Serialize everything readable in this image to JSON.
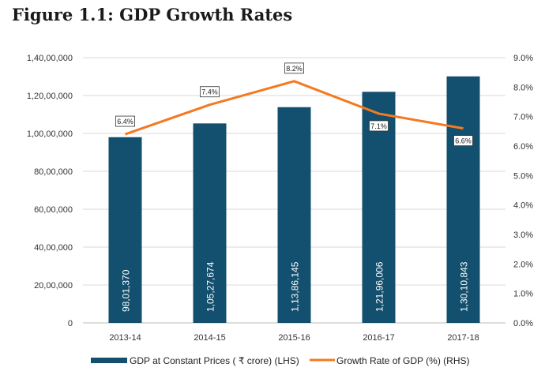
{
  "chart_data": {
    "type": "bar+line",
    "title": "Figure 1.1: GDP Growth Rates",
    "categories": [
      "2013-14",
      "2014-15",
      "2015-16",
      "2016-17",
      "2017-18"
    ],
    "series": [
      {
        "name": "GDP at Constant Prices ( ₹ crore) (LHS)",
        "type": "bar",
        "axis": "left",
        "values": [
          9801370,
          10527674,
          11386145,
          12196006,
          13010843
        ],
        "labels": [
          "98,01,370",
          "1,05,27,674",
          "1,13,86,145",
          "1,21,96,006",
          "1,30,10,843"
        ],
        "color": "#134f6e"
      },
      {
        "name": "Growth Rate of GDP (%) (RHS)",
        "type": "line",
        "axis": "right",
        "values": [
          6.4,
          7.4,
          8.2,
          7.1,
          6.6
        ],
        "labels": [
          "6.4%",
          "7.4%",
          "8.2%",
          "7.1%",
          "6.6%"
        ],
        "color": "#f47920"
      }
    ],
    "left_axis": {
      "ylim": [
        0,
        14000000
      ],
      "ticks": [
        "0",
        "20,00,000",
        "40,00,000",
        "60,00,000",
        "80,00,000",
        "1,00,00,000",
        "1,20,00,000",
        "1,40,00,000"
      ]
    },
    "right_axis": {
      "ylim": [
        0,
        9
      ],
      "ticks": [
        "0.0%",
        "1.0%",
        "2.0%",
        "3.0%",
        "4.0%",
        "5.0%",
        "6.0%",
        "7.0%",
        "8.0%",
        "9.0%"
      ]
    },
    "grid": true,
    "legend": "bottom"
  }
}
